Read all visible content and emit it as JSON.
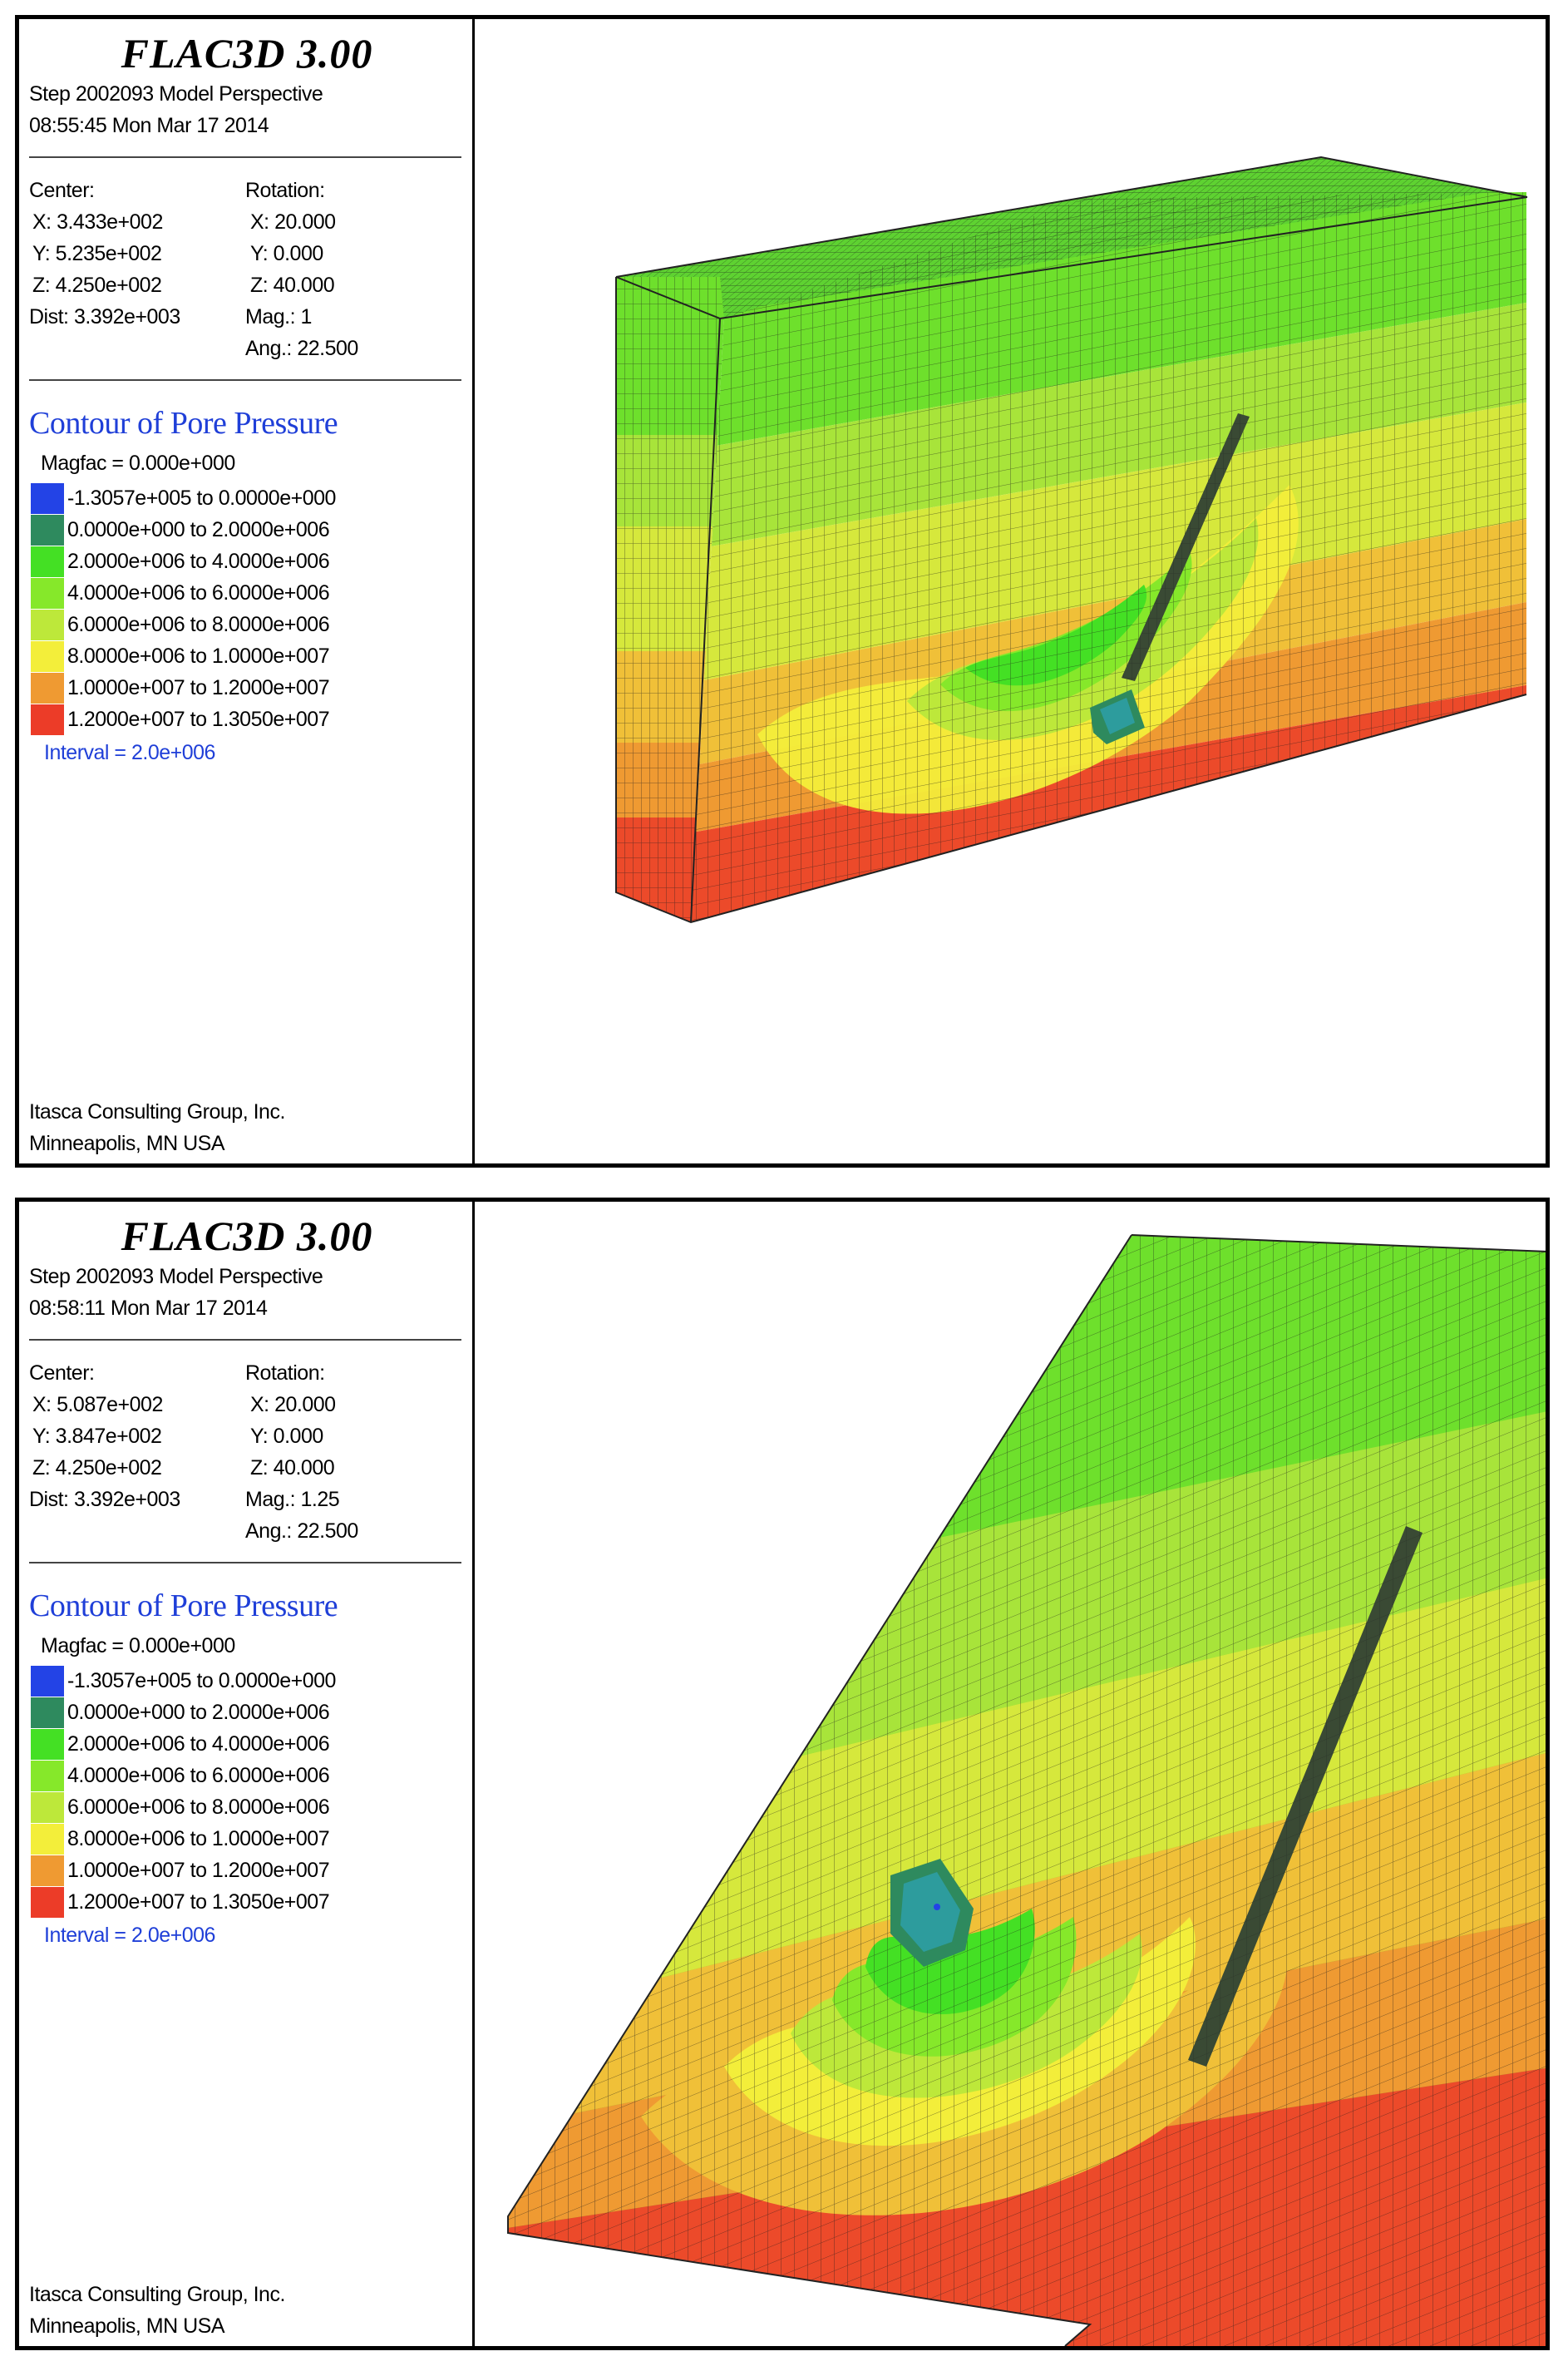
{
  "panels": [
    {
      "app_title": "FLAC3D 3.00",
      "step_line": "Step 2002093  Model Perspective",
      "time_line": "08:55:45 Mon Mar 17 2014",
      "center": {
        "label": "Center:",
        "x": "X: 3.433e+002",
        "y": "Y: 5.235e+002",
        "z": "Z: 4.250e+002",
        "dist": "Dist: 3.392e+003"
      },
      "rotation": {
        "label": "Rotation:",
        "x": "X:  20.000",
        "y": "Y:   0.000",
        "z": "Z:  40.000",
        "mag": "Mag.:        1",
        "ang": "Ang.:  22.500"
      },
      "contour_title": "Contour of Pore Pressure",
      "magfac": "Magfac =  0.000e+000",
      "interval": "Interval =  2.0e+006",
      "footer": {
        "company": "Itasca Consulting Group, Inc.",
        "city": "Minneapolis, MN  USA"
      }
    },
    {
      "app_title": "FLAC3D 3.00",
      "step_line": "Step 2002093  Model Perspective",
      "time_line": "08:58:11 Mon Mar 17 2014",
      "center": {
        "label": "Center:",
        "x": "X: 5.087e+002",
        "y": "Y: 3.847e+002",
        "z": "Z: 4.250e+002",
        "dist": "Dist: 3.392e+003"
      },
      "rotation": {
        "label": "Rotation:",
        "x": "X:  20.000",
        "y": "Y:   0.000",
        "z": "Z:  40.000",
        "mag": "Mag.:     1.25",
        "ang": "Ang.:  22.500"
      },
      "contour_title": "Contour of Pore Pressure",
      "magfac": "Magfac =  0.000e+000",
      "interval": "Interval =  2.0e+006",
      "footer": {
        "company": "Itasca Consulting Group, Inc.",
        "city": "Minneapolis, MN  USA"
      }
    }
  ],
  "legend": [
    {
      "range": "-1.3057e+005 to  0.0000e+000",
      "color": "#2343e6"
    },
    {
      "range": " 0.0000e+000 to  2.0000e+006",
      "color": "#2e8a5e"
    },
    {
      "range": " 2.0000e+006 to  4.0000e+006",
      "color": "#44e024"
    },
    {
      "range": " 4.0000e+006 to  6.0000e+006",
      "color": "#86e82a"
    },
    {
      "range": " 6.0000e+006 to  8.0000e+006",
      "color": "#bde83a"
    },
    {
      "range": " 8.0000e+006 to  1.0000e+007",
      "color": "#f3ee3a"
    },
    {
      "range": " 1.0000e+007 to  1.2000e+007",
      "color": "#ef9a32"
    },
    {
      "range": " 1.2000e+007 to  1.3050e+007",
      "color": "#ec3c28"
    }
  ]
}
